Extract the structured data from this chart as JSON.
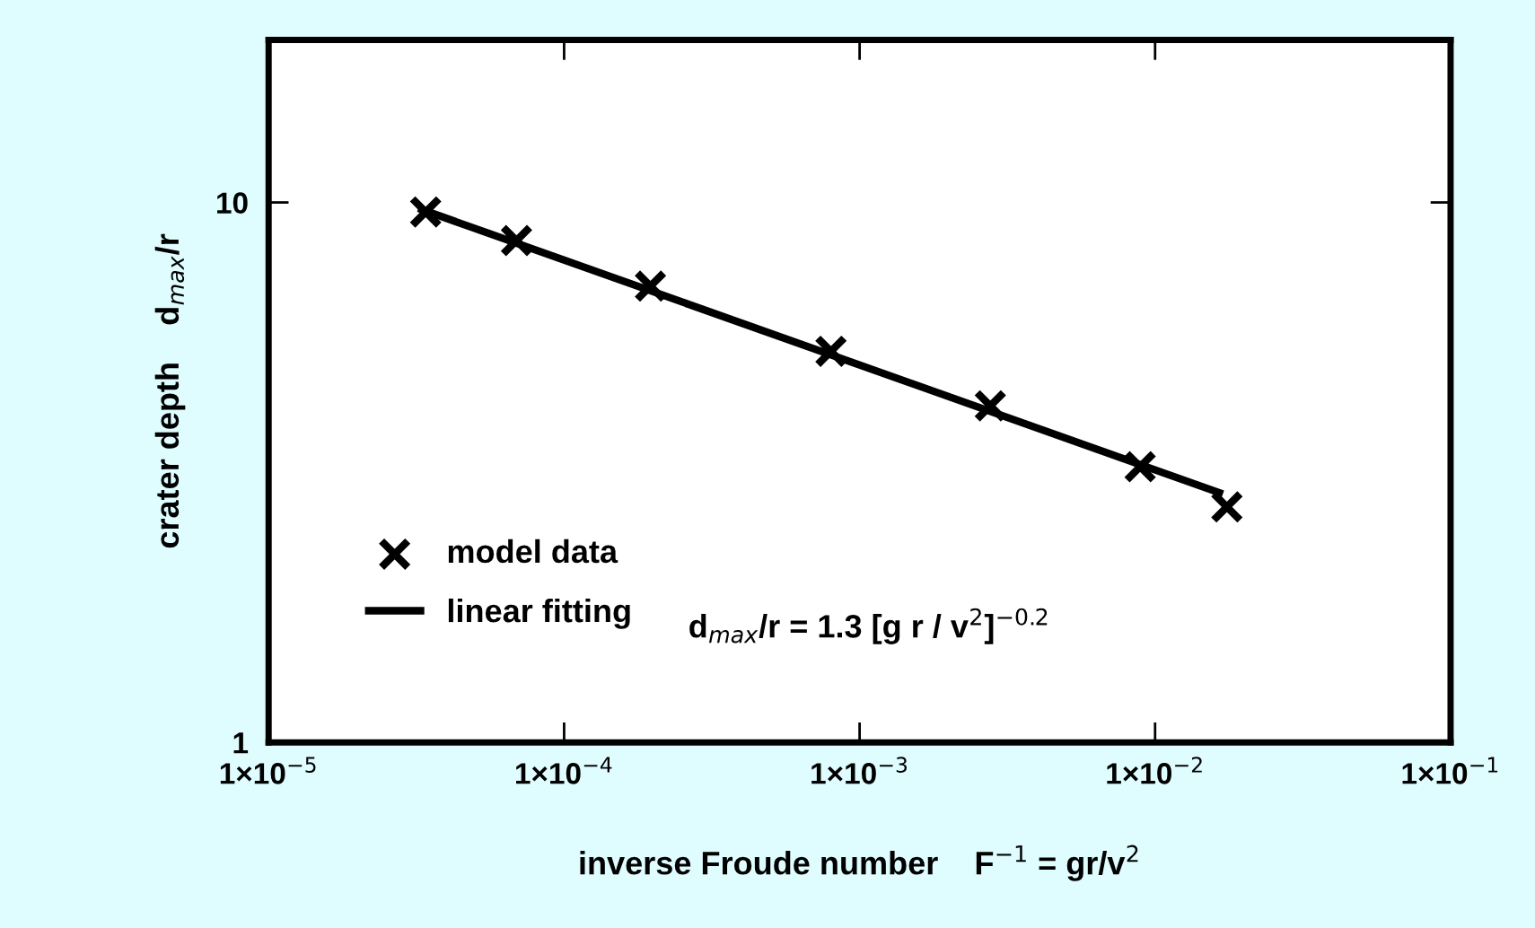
{
  "chart_data": {
    "type": "scatter",
    "xlabel": "inverse Froude number    F$^{−1}$ = gr/v$^{2}$",
    "ylabel": "crater depth    d$_{max}$/r",
    "log": "xy",
    "xlim": [
      1e-05,
      0.1
    ],
    "ylim": [
      1,
      20
    ],
    "xticks": [
      {
        "value": 1e-05,
        "label": "1×10$^{−5}$"
      },
      {
        "value": 0.0001,
        "label": "1×10$^{−4}$"
      },
      {
        "value": 0.001,
        "label": "1×10$^{−3}$"
      },
      {
        "value": 0.01,
        "label": "1×10$^{−2}$"
      },
      {
        "value": 0.1,
        "label": "1×10$^{−1}$"
      }
    ],
    "yticks": [
      1,
      10
    ],
    "grid": false,
    "legend": "bottom left",
    "annotations": [
      "d$_{max}$/r = 1.3 [g r / v$^{2}$]$^{−0.2}$"
    ],
    "series": [
      {
        "name": "model data",
        "color": "#000000",
        "marker": "cross",
        "x": [
          3.4e-05,
          6.9e-05,
          0.000196,
          0.0008,
          0.00277,
          0.0089,
          0.0175
        ],
        "values": [
          9.6,
          8.5,
          7.0,
          5.3,
          4.2,
          3.24,
          2.73
        ]
      },
      {
        "name": "linear fitting",
        "type": "line",
        "color": "#000000",
        "line_style": "solid",
        "x": [
          3.3e-05,
          0.0165
        ],
        "values": [
          9.7,
          2.9
        ]
      }
    ]
  }
}
